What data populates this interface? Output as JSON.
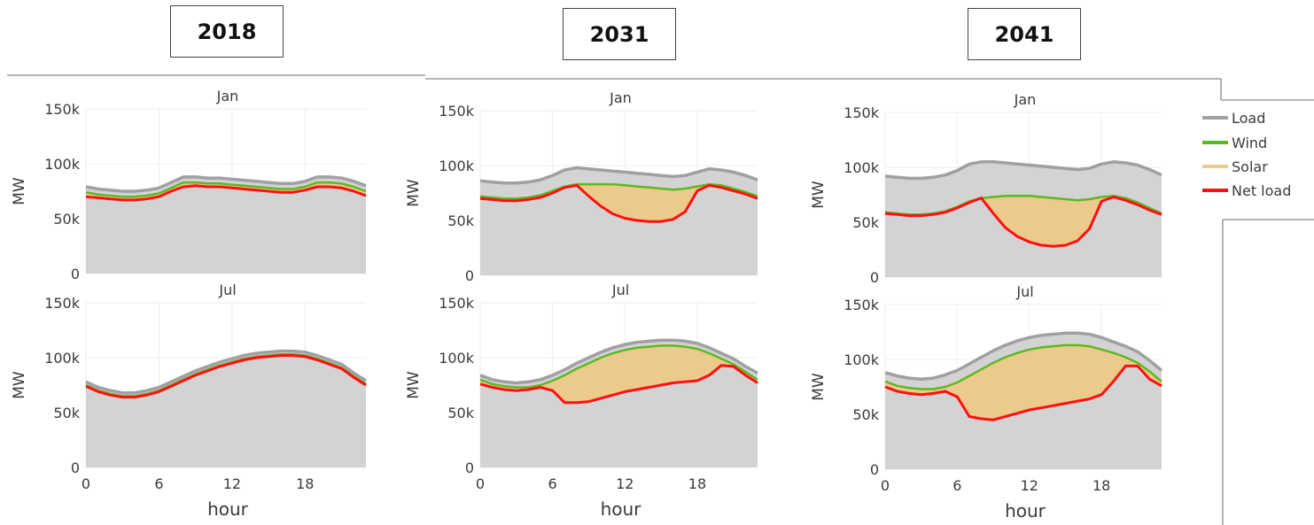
{
  "years": [
    "2018",
    "2031",
    "2041"
  ],
  "colors": {
    "load_fill": "#d3d3d3",
    "load_line": "#a0a0a4",
    "wind_fill": "#9dc466",
    "wind_line": "#5cb825",
    "solar_fill": "#ebca8c",
    "net_line": "#ff1010",
    "grid": "#ececf0",
    "text": "#3a3a3a"
  },
  "legend": [
    {
      "label": "Load",
      "color": "#a0a0a4"
    },
    {
      "label": "Wind",
      "color": "#5cb825"
    },
    {
      "label": "Solar",
      "color": "#ebca8c"
    },
    {
      "label": "Net load",
      "color": "#ff1010"
    }
  ],
  "chart_data": [
    {
      "type": "area",
      "year": "2018",
      "month": "Jan",
      "x": [
        0,
        1,
        2,
        3,
        4,
        5,
        6,
        7,
        8,
        9,
        10,
        11,
        12,
        13,
        14,
        15,
        16,
        17,
        18,
        19,
        20,
        21,
        22,
        23
      ],
      "series": [
        {
          "name": "Load",
          "values": [
            79,
            77,
            76,
            75,
            75,
            76,
            78,
            83,
            88,
            88,
            87,
            87,
            86,
            85,
            84,
            83,
            82,
            82,
            84,
            88,
            88,
            87,
            84,
            80
          ]
        },
        {
          "name": "Wind",
          "values": [
            74,
            72,
            71,
            70,
            70,
            71,
            73,
            78,
            83,
            83,
            82,
            82,
            81,
            80,
            79,
            78,
            77,
            77,
            79,
            83,
            83,
            82,
            79,
            75
          ]
        },
        {
          "name": "Solar",
          "values": [
            74,
            72,
            71,
            70,
            70,
            71,
            73,
            78,
            83,
            83,
            82,
            82,
            81,
            80,
            79,
            78,
            77,
            77,
            79,
            83,
            83,
            82,
            79,
            75
          ]
        },
        {
          "name": "Net load",
          "values": [
            70,
            69,
            68,
            67,
            67,
            68,
            70,
            75,
            79,
            80,
            79,
            79,
            78,
            77,
            76,
            75,
            74,
            74,
            76,
            79,
            79,
            78,
            75,
            71
          ]
        }
      ],
      "xlabel": "",
      "ylabel": "MW",
      "ylim": [
        0,
        150
      ],
      "xlim": [
        0,
        23
      ],
      "xticks": [
        "0",
        "6",
        "12",
        "18"
      ],
      "yticks": [
        "0",
        "50k",
        "100k",
        "150k"
      ]
    },
    {
      "type": "area",
      "year": "2018",
      "month": "Jul",
      "x": [
        0,
        1,
        2,
        3,
        4,
        5,
        6,
        7,
        8,
        9,
        10,
        11,
        12,
        13,
        14,
        15,
        16,
        17,
        18,
        19,
        20,
        21,
        22,
        23
      ],
      "series": [
        {
          "name": "Load",
          "values": [
            78,
            73,
            70,
            68,
            68,
            70,
            73,
            78,
            83,
            88,
            92,
            96,
            99,
            102,
            104,
            105,
            106,
            106,
            105,
            102,
            98,
            94,
            86,
            79
          ]
        },
        {
          "name": "Wind",
          "values": [
            75,
            70,
            67,
            65,
            65,
            67,
            70,
            75,
            80,
            85,
            89,
            93,
            96,
            99,
            101,
            102,
            103,
            103,
            102,
            99,
            95,
            91,
            83,
            76
          ]
        },
        {
          "name": "Solar",
          "values": [
            75,
            70,
            67,
            65,
            65,
            67,
            70,
            75,
            80,
            85,
            89,
            93,
            96,
            99,
            101,
            102,
            103,
            103,
            102,
            99,
            95,
            91,
            83,
            76
          ]
        },
        {
          "name": "Net load",
          "values": [
            74,
            69,
            66,
            64,
            64,
            66,
            69,
            74,
            79,
            84,
            88,
            92,
            95,
            98,
            100,
            101,
            102,
            102,
            101,
            98,
            94,
            90,
            82,
            75
          ]
        }
      ],
      "xlabel": "hour",
      "ylabel": "MW",
      "ylim": [
        0,
        150
      ],
      "xlim": [
        0,
        23
      ],
      "xticks": [
        "0",
        "6",
        "12",
        "18"
      ],
      "yticks": [
        "0",
        "50k",
        "100k",
        "150k"
      ]
    },
    {
      "type": "area",
      "year": "2031",
      "month": "Jan",
      "x": [
        0,
        1,
        2,
        3,
        4,
        5,
        6,
        7,
        8,
        9,
        10,
        11,
        12,
        13,
        14,
        15,
        16,
        17,
        18,
        19,
        20,
        21,
        22,
        23
      ],
      "series": [
        {
          "name": "Load",
          "values": [
            86,
            85,
            84,
            84,
            85,
            87,
            91,
            96,
            98,
            97,
            96,
            95,
            94,
            93,
            92,
            91,
            90,
            91,
            94,
            97,
            96,
            94,
            91,
            87
          ]
        },
        {
          "name": "Wind",
          "values": [
            72,
            71,
            70,
            70,
            71,
            73,
            77,
            81,
            83,
            83,
            83,
            83,
            82,
            81,
            80,
            79,
            78,
            79,
            81,
            83,
            82,
            79,
            76,
            72
          ]
        },
        {
          "name": "Solar",
          "values": [
            72,
            71,
            70,
            70,
            71,
            73,
            77,
            81,
            83,
            83,
            83,
            83,
            82,
            81,
            80,
            79,
            78,
            79,
            81,
            83,
            82,
            79,
            76,
            72
          ]
        },
        {
          "name": "Net load",
          "values": [
            70,
            69,
            68,
            68,
            69,
            71,
            75,
            80,
            82,
            72,
            63,
            56,
            52,
            50,
            49,
            49,
            51,
            58,
            77,
            82,
            80,
            77,
            74,
            70
          ]
        }
      ],
      "xlabel": "",
      "ylabel": "MW",
      "ylim": [
        0,
        150
      ],
      "xlim": [
        0,
        23
      ],
      "xticks": [
        "0",
        "6",
        "12",
        "18"
      ],
      "yticks": [
        "0",
        "50k",
        "100k",
        "150k"
      ]
    },
    {
      "type": "area",
      "year": "2031",
      "month": "Jul",
      "x": [
        0,
        1,
        2,
        3,
        4,
        5,
        6,
        7,
        8,
        9,
        10,
        11,
        12,
        13,
        14,
        15,
        16,
        17,
        18,
        19,
        20,
        21,
        22,
        23
      ],
      "series": [
        {
          "name": "Load",
          "values": [
            84,
            80,
            78,
            77,
            78,
            80,
            84,
            89,
            95,
            100,
            105,
            109,
            112,
            114,
            115,
            116,
            116,
            115,
            113,
            109,
            104,
            99,
            92,
            86
          ]
        },
        {
          "name": "Wind",
          "values": [
            80,
            76,
            74,
            73,
            73,
            75,
            79,
            84,
            90,
            95,
            100,
            104,
            107,
            109,
            110,
            111,
            111,
            110,
            108,
            104,
            99,
            94,
            87,
            80
          ]
        },
        {
          "name": "Solar",
          "values": [
            80,
            76,
            74,
            73,
            73,
            75,
            79,
            84,
            90,
            95,
            100,
            104,
            107,
            109,
            110,
            111,
            111,
            110,
            108,
            104,
            99,
            94,
            87,
            80
          ]
        },
        {
          "name": "Net load",
          "values": [
            76,
            73,
            71,
            70,
            71,
            73,
            70,
            59,
            59,
            60,
            63,
            66,
            69,
            71,
            73,
            75,
            77,
            78,
            79,
            84,
            93,
            92,
            84,
            77
          ]
        }
      ],
      "xlabel": "hour",
      "ylabel": "MW",
      "ylim": [
        0,
        150
      ],
      "xlim": [
        0,
        23
      ],
      "xticks": [
        "0",
        "6",
        "12",
        "18"
      ],
      "yticks": [
        "0",
        "50k",
        "100k",
        "150k"
      ]
    },
    {
      "type": "area",
      "year": "2041",
      "month": "Jan",
      "x": [
        0,
        1,
        2,
        3,
        4,
        5,
        6,
        7,
        8,
        9,
        10,
        11,
        12,
        13,
        14,
        15,
        16,
        17,
        18,
        19,
        20,
        21,
        22,
        23
      ],
      "series": [
        {
          "name": "Load",
          "values": [
            92,
            91,
            90,
            90,
            91,
            93,
            97,
            103,
            105,
            105,
            104,
            103,
            102,
            101,
            100,
            99,
            98,
            99,
            103,
            105,
            104,
            102,
            98,
            93
          ]
        },
        {
          "name": "Wind",
          "values": [
            59,
            58,
            57,
            57,
            58,
            60,
            64,
            69,
            72,
            73,
            74,
            74,
            74,
            73,
            72,
            71,
            70,
            71,
            73,
            74,
            72,
            68,
            63,
            58
          ]
        },
        {
          "name": "Solar",
          "values": [
            59,
            58,
            57,
            57,
            58,
            60,
            64,
            69,
            72,
            73,
            74,
            74,
            74,
            73,
            72,
            71,
            70,
            71,
            73,
            74,
            72,
            68,
            63,
            58
          ]
        },
        {
          "name": "Net load",
          "values": [
            58,
            57,
            56,
            56,
            57,
            59,
            63,
            68,
            72,
            58,
            45,
            37,
            32,
            29,
            28,
            29,
            33,
            44,
            69,
            73,
            70,
            66,
            61,
            57
          ]
        }
      ],
      "xlabel": "",
      "ylabel": "MW",
      "ylim": [
        0,
        150
      ],
      "xlim": [
        0,
        23
      ],
      "xticks": [
        "0",
        "6",
        "12",
        "18"
      ],
      "yticks": [
        "0",
        "50k",
        "100k",
        "150k"
      ]
    },
    {
      "type": "area",
      "year": "2041",
      "month": "Jul",
      "x": [
        0,
        1,
        2,
        3,
        4,
        5,
        6,
        7,
        8,
        9,
        10,
        11,
        12,
        13,
        14,
        15,
        16,
        17,
        18,
        19,
        20,
        21,
        22,
        23
      ],
      "series": [
        {
          "name": "Load",
          "values": [
            88,
            85,
            83,
            82,
            83,
            86,
            90,
            96,
            102,
            108,
            113,
            117,
            120,
            122,
            123,
            124,
            124,
            123,
            120,
            116,
            112,
            107,
            99,
            90
          ]
        },
        {
          "name": "Wind",
          "values": [
            80,
            76,
            74,
            73,
            73,
            75,
            79,
            85,
            91,
            97,
            102,
            106,
            109,
            111,
            112,
            113,
            113,
            112,
            109,
            106,
            102,
            97,
            89,
            80
          ]
        },
        {
          "name": "Solar",
          "values": [
            80,
            76,
            74,
            73,
            73,
            75,
            79,
            85,
            91,
            97,
            102,
            106,
            109,
            111,
            112,
            113,
            113,
            112,
            109,
            106,
            102,
            97,
            89,
            80
          ]
        },
        {
          "name": "Net load",
          "values": [
            75,
            71,
            69,
            68,
            69,
            71,
            66,
            48,
            46,
            45,
            48,
            51,
            54,
            56,
            58,
            60,
            62,
            64,
            68,
            80,
            94,
            94,
            82,
            76
          ]
        }
      ],
      "xlabel": "hour",
      "ylabel": "MW",
      "ylim": [
        0,
        150
      ],
      "xlim": [
        0,
        23
      ],
      "xticks": [
        "0",
        "6",
        "12",
        "18"
      ],
      "yticks": [
        "0",
        "50k",
        "100k",
        "150k"
      ]
    }
  ]
}
